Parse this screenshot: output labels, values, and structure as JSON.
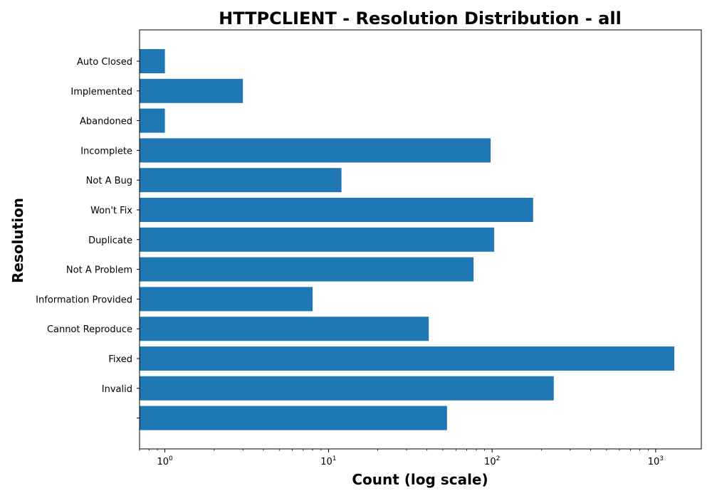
{
  "chart_data": {
    "type": "bar",
    "orientation": "horizontal",
    "title": "HTTPCLIENT - Resolution Distribution - all",
    "xlabel": "Count (log scale)",
    "ylabel": "Resolution",
    "xscale": "log",
    "xlim": [
      0.7,
      1900
    ],
    "x_ticks": [
      1,
      10,
      100,
      1000
    ],
    "x_tick_base": "10",
    "x_tick_exponents": [
      "0",
      "1",
      "2",
      "3"
    ],
    "bar_color": "#1f77b4",
    "categories": [
      "Auto Closed",
      "Implemented",
      "Abandoned",
      "Incomplete",
      "Not A Bug",
      "Won't Fix",
      "Duplicate",
      "Not A Problem",
      "Information Provided",
      "Cannot Reproduce",
      "Fixed",
      "Invalid",
      ""
    ],
    "values": [
      1,
      3,
      1,
      98,
      12,
      178,
      103,
      77,
      8,
      41,
      1300,
      238,
      53
    ]
  }
}
